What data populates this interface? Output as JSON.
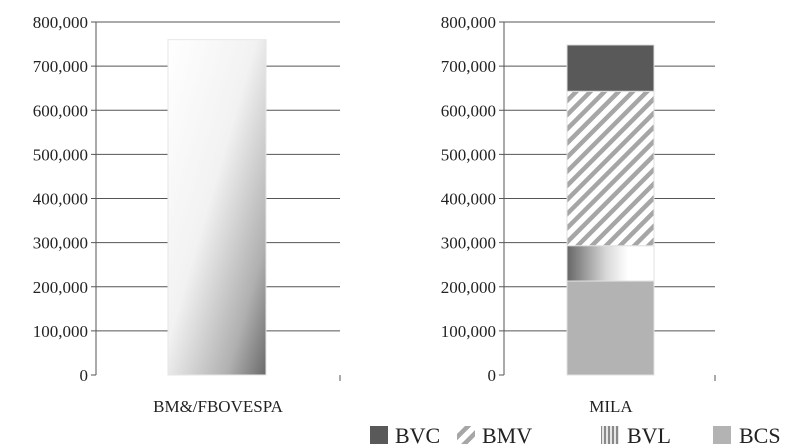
{
  "chart_data": [
    {
      "type": "bar",
      "categories": [
        "BM&/FBOVESPA"
      ],
      "series": [
        {
          "name": "",
          "values": [
            760000
          ]
        }
      ],
      "ylim": [
        0,
        800000
      ],
      "yticks": [
        "0",
        "100,000",
        "200,000",
        "300,000",
        "400,000",
        "500,000",
        "600,000",
        "700,000",
        "800,000"
      ],
      "grid": true
    },
    {
      "type": "bar",
      "stacked": true,
      "categories": [
        "MILA"
      ],
      "series": [
        {
          "name": "BCS",
          "values": [
            213000
          ]
        },
        {
          "name": "BVL",
          "values": [
            80000
          ]
        },
        {
          "name": "BMV",
          "values": [
            350000
          ]
        },
        {
          "name": "BVC",
          "values": [
            105000
          ]
        }
      ],
      "ylim": [
        0,
        800000
      ],
      "yticks": [
        "0",
        "100,000",
        "200,000",
        "300,000",
        "400,000",
        "500,000",
        "600,000",
        "700,000",
        "800,000"
      ],
      "grid": true
    }
  ],
  "legend": {
    "placement": "bottom-right",
    "items": [
      {
        "label": "BVC",
        "pattern": "solid-dark",
        "color": "#595959"
      },
      {
        "label": "BMV",
        "pattern": "diagonal-hatch",
        "color": "#9a9a9a"
      },
      {
        "label": "BVL",
        "pattern": "gradient",
        "color": "#888888"
      },
      {
        "label": "BCS",
        "pattern": "solid-light",
        "color": "#b3b3b3"
      }
    ]
  },
  "colors": {
    "BVC": "#595959",
    "BMV_hatch": "#a6a6a6",
    "BVL_dark": "#6e6e6e",
    "BCS": "#b3b3b3",
    "grid": "#555555"
  }
}
